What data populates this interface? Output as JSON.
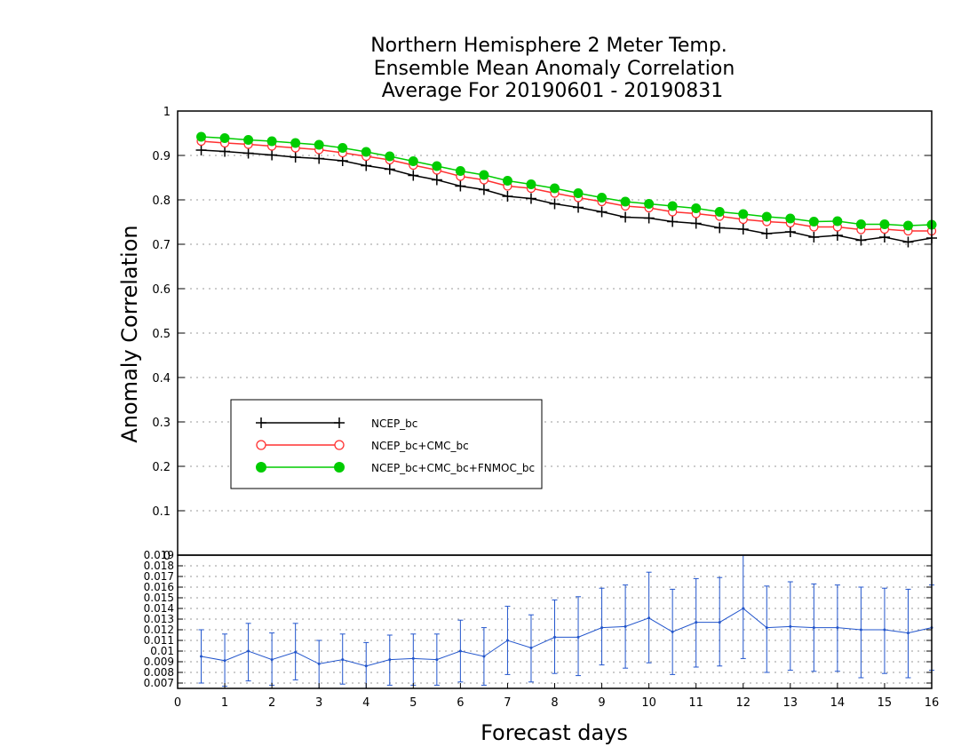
{
  "chart_data": [
    {
      "type": "line",
      "title": [
        "Northern Hemisphere 2 Meter Temp.",
        "Ensemble Mean Anomaly Correlation",
        "Average For 20190601 - 20190831"
      ],
      "ylabel": "Anomaly Correlation",
      "xlabel": "Forecast days",
      "ylim": [
        0,
        1
      ],
      "xlim": [
        0,
        16
      ],
      "y_ticks": [
        "1",
        "0.9",
        "0.8",
        "0.7",
        "0.6",
        "0.5",
        "0.4",
        "0.3",
        "0.2",
        "0.1",
        "0"
      ],
      "x_ticks": [
        "0",
        "1",
        "2",
        "3",
        "4",
        "5",
        "6",
        "7",
        "8",
        "9",
        "10",
        "11",
        "12",
        "13",
        "14",
        "15",
        "16"
      ],
      "grid": true,
      "legend_position": "lower-left",
      "x": [
        0.5,
        1,
        1.5,
        2,
        2.5,
        3,
        3.5,
        4,
        4.5,
        5,
        5.5,
        6,
        6.5,
        7,
        7.5,
        8,
        8.5,
        9,
        9.5,
        10,
        10.5,
        11,
        11.5,
        12,
        12.5,
        13,
        13.5,
        14,
        14.5,
        15,
        15.5,
        16
      ],
      "series": [
        {
          "name": "NCEP_bc",
          "color": "#000000",
          "marker": "plus",
          "values": [
            0.912,
            0.909,
            0.905,
            0.901,
            0.896,
            0.893,
            0.888,
            0.877,
            0.869,
            0.855,
            0.845,
            0.831,
            0.823,
            0.808,
            0.803,
            0.791,
            0.783,
            0.773,
            0.761,
            0.759,
            0.751,
            0.747,
            0.737,
            0.734,
            0.724,
            0.728,
            0.716,
            0.72,
            0.709,
            0.716,
            0.705,
            0.714
          ]
        },
        {
          "name": "NCEP_bc+CMC_bc",
          "color": "#ff3030",
          "marker": "open-circle",
          "values": [
            0.932,
            0.928,
            0.925,
            0.921,
            0.917,
            0.913,
            0.906,
            0.898,
            0.89,
            0.878,
            0.867,
            0.853,
            0.845,
            0.831,
            0.826,
            0.815,
            0.805,
            0.796,
            0.786,
            0.782,
            0.773,
            0.769,
            0.763,
            0.756,
            0.751,
            0.748,
            0.739,
            0.739,
            0.733,
            0.734,
            0.73,
            0.73
          ]
        },
        {
          "name": "NCEP_bc+CMC_bc+FNMOC_bc",
          "color": "#00cc00",
          "marker": "filled-circle",
          "values": [
            0.942,
            0.939,
            0.935,
            0.932,
            0.928,
            0.924,
            0.917,
            0.908,
            0.898,
            0.887,
            0.876,
            0.865,
            0.856,
            0.843,
            0.835,
            0.826,
            0.815,
            0.805,
            0.796,
            0.791,
            0.786,
            0.781,
            0.773,
            0.768,
            0.762,
            0.758,
            0.751,
            0.752,
            0.745,
            0.745,
            0.742,
            0.744
          ]
        }
      ]
    },
    {
      "type": "line",
      "xlabel": "Forecast days",
      "ylim": [
        0.0065,
        0.019
      ],
      "y_ticks": [
        "0.007",
        "0.008",
        "0.009",
        "0.01",
        "0.011",
        "0.012",
        "0.013",
        "0.014",
        "0.015",
        "0.016",
        "0.017",
        "0.018",
        "0.019"
      ],
      "grid": true,
      "error_bars": true,
      "color": "#2255cc",
      "x": [
        0.5,
        1,
        1.5,
        2,
        2.5,
        3,
        3.5,
        4,
        4.5,
        5,
        5.5,
        6,
        6.5,
        7,
        7.5,
        8,
        8.5,
        9,
        9.5,
        10,
        10.5,
        11,
        11.5,
        12,
        12.5,
        13,
        13.5,
        14,
        14.5,
        15,
        15.5,
        16
      ],
      "values": [
        0.0095,
        0.0091,
        0.01,
        0.0092,
        0.0099,
        0.0088,
        0.0092,
        0.0086,
        0.0092,
        0.0093,
        0.0092,
        0.01,
        0.0095,
        0.011,
        0.0103,
        0.0113,
        0.0113,
        0.0122,
        0.0123,
        0.0131,
        0.0118,
        0.0127,
        0.0127,
        0.014,
        0.0122,
        0.0123,
        0.0122,
        0.0122,
        0.012,
        0.012,
        0.0117,
        0.0122
      ],
      "err_low": [
        0.007,
        0.0067,
        0.0072,
        0.0068,
        0.0073,
        0.0065,
        0.0069,
        0.0065,
        0.0068,
        0.0068,
        0.0068,
        0.0071,
        0.0068,
        0.0078,
        0.0071,
        0.0079,
        0.0077,
        0.0087,
        0.0084,
        0.0089,
        0.0078,
        0.0085,
        0.0086,
        0.0093,
        0.008,
        0.0082,
        0.0081,
        0.0081,
        0.0075,
        0.0079,
        0.0075,
        0.0082
      ],
      "err_high": [
        0.012,
        0.0116,
        0.0126,
        0.0117,
        0.0126,
        0.011,
        0.0116,
        0.0108,
        0.0115,
        0.0116,
        0.0116,
        0.0129,
        0.0122,
        0.0142,
        0.0134,
        0.0148,
        0.0151,
        0.0159,
        0.0162,
        0.0174,
        0.0158,
        0.0168,
        0.0169,
        0.019,
        0.0161,
        0.0165,
        0.0163,
        0.0162,
        0.016,
        0.0159,
        0.0158,
        0.0162
      ]
    }
  ]
}
